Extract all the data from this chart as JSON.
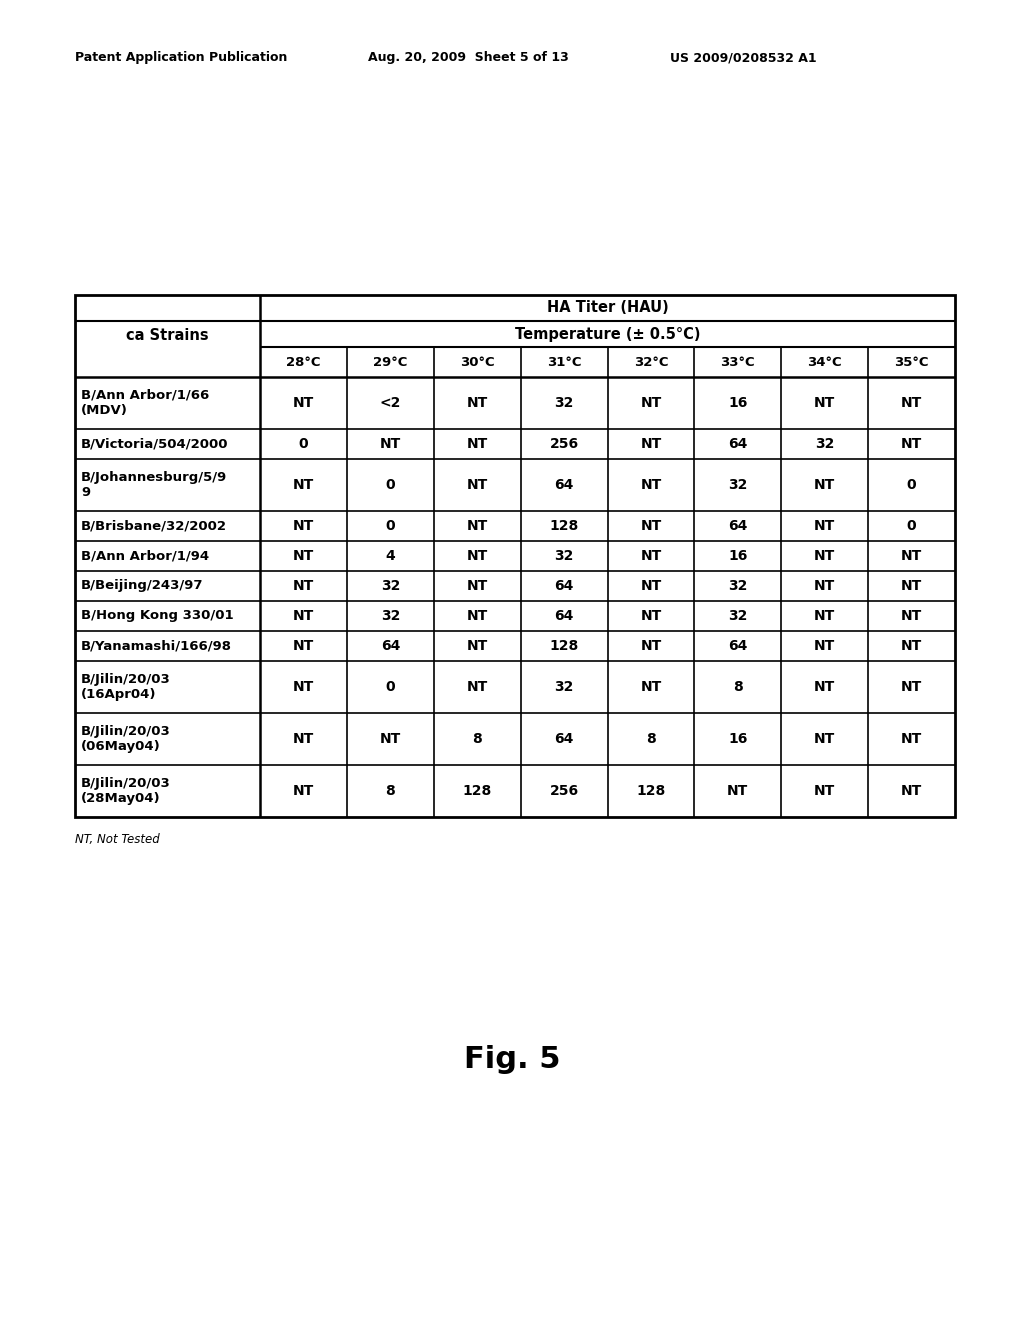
{
  "header_line1": "Patent Application Publication",
  "header_line2": "Aug. 20, 2009  Sheet 5 of 13",
  "header_line3": "US 2009/0208532 A1",
  "figure_label": "Fig. 5",
  "footnote": "NT, Not Tested",
  "table_title1": "HA Titer (HAU)",
  "table_title2": "Temperature (± 0.5°C)",
  "strain_header": "ca Strains",
  "temp_cols": [
    "28°C",
    "29°C",
    "30°C",
    "31°C",
    "32°C",
    "33°C",
    "34°C",
    "35°C"
  ],
  "rows": [
    {
      "strain": "B/Ann Arbor/1/66\n(MDV)",
      "values": [
        "NT",
        "<2",
        "NT",
        "32",
        "NT",
        "16",
        "NT",
        "NT"
      ],
      "tall": true
    },
    {
      "strain": "B/Victoria/504/2000",
      "values": [
        "0",
        "NT",
        "NT",
        "256",
        "NT",
        "64",
        "32",
        "NT"
      ],
      "tall": false
    },
    {
      "strain": "B/Johannesburg/5/9\n9",
      "values": [
        "NT",
        "0",
        "NT",
        "64",
        "NT",
        "32",
        "NT",
        "0"
      ],
      "tall": true
    },
    {
      "strain": "B/Brisbane/32/2002",
      "values": [
        "NT",
        "0",
        "NT",
        "128",
        "NT",
        "64",
        "NT",
        "0"
      ],
      "tall": false
    },
    {
      "strain": "B/Ann Arbor/1/94",
      "values": [
        "NT",
        "4",
        "NT",
        "32",
        "NT",
        "16",
        "NT",
        "NT"
      ],
      "tall": false
    },
    {
      "strain": "B/Beijing/243/97",
      "values": [
        "NT",
        "32",
        "NT",
        "64",
        "NT",
        "32",
        "NT",
        "NT"
      ],
      "tall": false
    },
    {
      "strain": "B/Hong Kong 330/01",
      "values": [
        "NT",
        "32",
        "NT",
        "64",
        "NT",
        "32",
        "NT",
        "NT"
      ],
      "tall": false
    },
    {
      "strain": "B/Yanamashi/166/98",
      "values": [
        "NT",
        "64",
        "NT",
        "128",
        "NT",
        "64",
        "NT",
        "NT"
      ],
      "tall": false
    },
    {
      "strain": "B/Jilin/20/03\n(16Apr04)",
      "values": [
        "NT",
        "0",
        "NT",
        "32",
        "NT",
        "8",
        "NT",
        "NT"
      ],
      "tall": true
    },
    {
      "strain": "B/Jilin/20/03\n(06May04)",
      "values": [
        "NT",
        "NT",
        "8",
        "64",
        "8",
        "16",
        "NT",
        "NT"
      ],
      "tall": true
    },
    {
      "strain": "B/Jilin/20/03\n(28May04)",
      "values": [
        "NT",
        "8",
        "128",
        "256",
        "128",
        "NT",
        "NT",
        "NT"
      ],
      "tall": true
    }
  ],
  "bg_color": "#ffffff",
  "text_color": "#000000"
}
